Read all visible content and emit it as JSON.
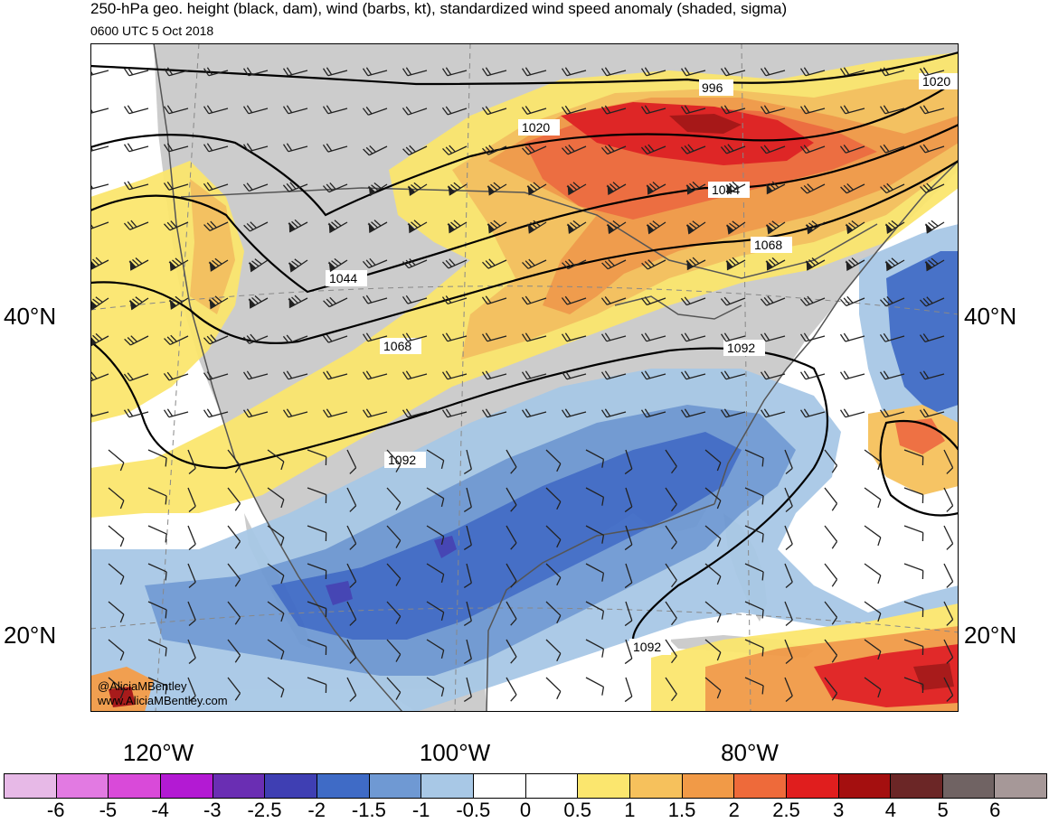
{
  "header": {
    "title": "250-hPa geo. height (black, dam), wind (barbs, kt), standardized wind speed anomaly (shaded, sigma)",
    "valid_time": "0600 UTC 5 Oct 2018"
  },
  "map": {
    "lat_labels": [
      {
        "text": "40°N",
        "lat": 40
      },
      {
        "text": "20°N",
        "lat": 20
      }
    ],
    "lon_labels": [
      "120°W",
      "100°W",
      "80°W"
    ],
    "contour_labels": [
      "996",
      "1020",
      "1020",
      "1044",
      "1044",
      "1068",
      "1068",
      "1092",
      "1092",
      "1092"
    ],
    "credit_handle": "@AliciaMBentley",
    "credit_site": "www.AliciaMBentley.com"
  },
  "colorbar": {
    "colors": [
      "#e7b9e7",
      "#e27ae2",
      "#d94ad9",
      "#b31ad3",
      "#6a2eb3",
      "#3f3fb3",
      "#3f6bc6",
      "#6f99d3",
      "#a8c8e6",
      "#ffffff",
      "#ffffff",
      "#fbe66e",
      "#f6c15c",
      "#f19a47",
      "#ee6a3a",
      "#e01e1e",
      "#a40f0f",
      "#6b2626",
      "#706363",
      "#a69898"
    ],
    "ticks": [
      "-6",
      "-5",
      "-4",
      "-3",
      "-2.5",
      "-2",
      "-1.5",
      "-1",
      "-0.5",
      "0",
      "0.5",
      "1",
      "1.5",
      "2",
      "2.5",
      "3",
      "4",
      "5",
      "6"
    ]
  },
  "palette": {
    "land": "#cccccc",
    "coast": "#555555",
    "contour": "#000000"
  }
}
